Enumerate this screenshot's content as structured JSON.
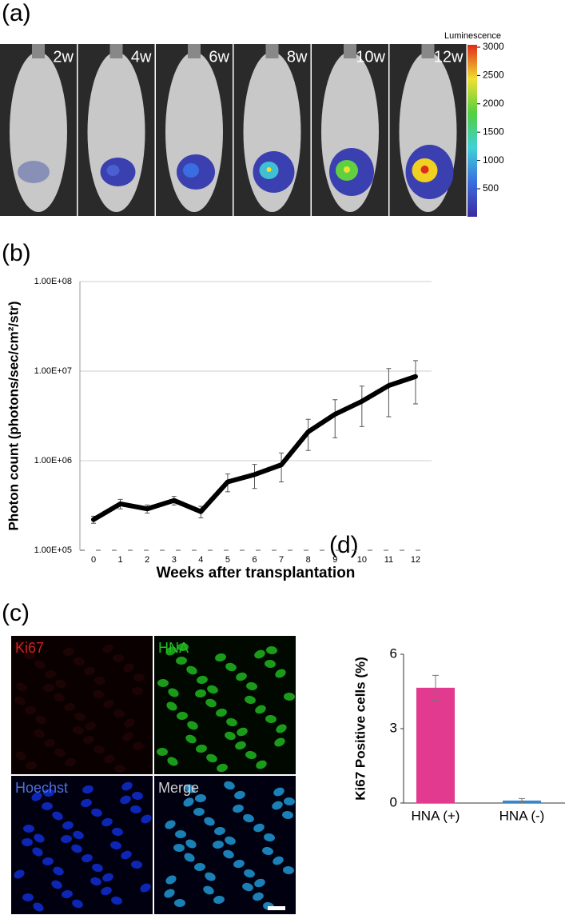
{
  "panels": [
    "(a)",
    "(b)",
    "(c)",
    "(d)"
  ],
  "imaging": {
    "time_labels": [
      "2w",
      "4w",
      "6w",
      "8w",
      "10w",
      "12w"
    ],
    "colorbar_title": "Luminescence",
    "colorbar_ticks": [
      3000,
      2500,
      2000,
      1500,
      1000,
      500
    ]
  },
  "micrographs": {
    "labels": [
      "Ki67",
      "HNA",
      "Hoechst",
      "Merge"
    ]
  },
  "chart_data": [
    {
      "type": "line",
      "ylabel": "Photon count (photons/sec/cm²/str)",
      "xlabel": "Weeks after transplantation",
      "categories": [
        "0",
        "1",
        "2",
        "3",
        "4",
        "5",
        "6",
        "7",
        "8",
        "9",
        "10",
        "11",
        "12"
      ],
      "values": [
        220000,
        330000,
        290000,
        360000,
        270000,
        580000,
        700000,
        900000,
        2100000,
        3300000,
        4600000,
        6900000,
        8700000
      ],
      "errors": [
        20000,
        40000,
        30000,
        40000,
        40000,
        130000,
        210000,
        320000,
        800000,
        1500000,
        2200000,
        3800000,
        4400000
      ],
      "color": "#000000",
      "log_scale": true,
      "grid": true,
      "ylim": [
        100000,
        100000000
      ],
      "yticks": [
        {
          "value": 100000,
          "label": "1.00E+05"
        },
        {
          "value": 1000000,
          "label": "1.00E+06"
        },
        {
          "value": 10000000,
          "label": "1.00E+07"
        },
        {
          "value": 100000000,
          "label": "1.00E+08"
        }
      ]
    },
    {
      "type": "bar",
      "ylabel": "Ki67 Positive cells (%)",
      "categories": [
        "HNA (+)",
        "HNA (-)"
      ],
      "values": [
        4.65,
        0.1
      ],
      "errors": [
        0.5,
        0.08
      ],
      "colors": [
        "#e13a8f",
        "#3a86c8"
      ],
      "ylim": [
        0,
        6
      ],
      "yticks": [
        0,
        3,
        6
      ]
    }
  ]
}
